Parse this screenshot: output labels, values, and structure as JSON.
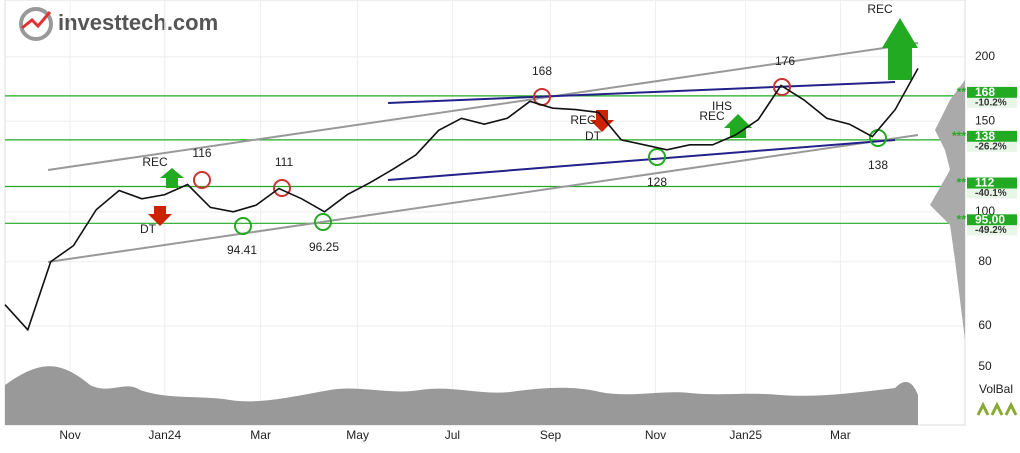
{
  "logo": "investtech.com",
  "chart_data": {
    "type": "line",
    "log_scale": true,
    "grid": true,
    "color": "#111111",
    "x": [
      0,
      2,
      4,
      6,
      8,
      10,
      12,
      14,
      16,
      18,
      20,
      22,
      24,
      26,
      28,
      30,
      32,
      34,
      36,
      38,
      40,
      42,
      44,
      46,
      48,
      50,
      52,
      54,
      56,
      58,
      60,
      62,
      64,
      66,
      68,
      70,
      72,
      74,
      76,
      78,
      80
    ],
    "values": [
      66,
      59,
      80,
      86,
      101,
      110,
      106,
      108,
      113,
      102,
      100,
      103,
      111,
      106,
      100,
      108,
      114,
      121,
      129,
      144,
      152,
      148,
      152,
      164,
      159,
      158,
      156,
      138,
      135,
      132,
      135,
      135,
      141,
      151,
      176,
      165,
      152,
      148,
      140,
      158,
      190
    ],
    "xlim": [
      0,
      80
    ],
    "xticks": [
      {
        "value": 5.7,
        "label": "Nov"
      },
      {
        "value": 14,
        "label": "Jan24"
      },
      {
        "value": 22.4,
        "label": "Mar"
      },
      {
        "value": 30.9,
        "label": "May"
      },
      {
        "value": 39.2,
        "label": "Jul"
      },
      {
        "value": 47.8,
        "label": "Sep"
      },
      {
        "value": 57,
        "label": "Nov"
      },
      {
        "value": 64.9,
        "label": "Jan25"
      },
      {
        "value": 73.2,
        "label": "Mar"
      }
    ],
    "ylim": [
      52,
      258
    ],
    "yticks": [
      60,
      80,
      100,
      150,
      200
    ],
    "y_extra_label": "50",
    "levels": [
      {
        "value": 168,
        "label": "168",
        "change": "-10.2%",
        "strength": "**"
      },
      {
        "value": 138,
        "label": "138",
        "change": "-26.2%",
        "strength": "***"
      },
      {
        "value": 112,
        "label": "112",
        "change": "-40.1%",
        "strength": "**"
      },
      {
        "value": 95,
        "label": "95.00",
        "change": "-49.2%",
        "strength": "**"
      }
    ],
    "level_color": "#22aa22",
    "annotations": [
      "REC",
      "168",
      "176",
      "116",
      "111",
      "REC",
      "DT",
      "94.41",
      "96.25",
      "REC",
      "DT",
      "IHS",
      "REC",
      "128",
      "138"
    ],
    "volume_label": "VolBal"
  }
}
